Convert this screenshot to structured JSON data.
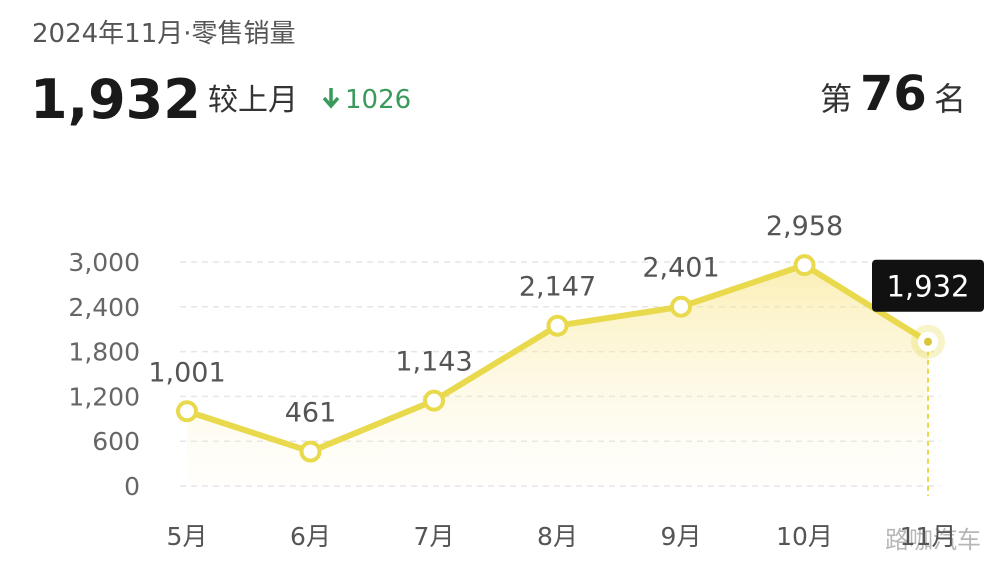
{
  "header": {
    "title": "2024年11月·零售销量",
    "value": "1,932",
    "compare_label": "较上月",
    "change": "1026",
    "rank_prefix": "第",
    "rank": "76",
    "rank_suffix": "名"
  },
  "watermark": "路咖汽车",
  "chart_data": {
    "type": "line",
    "categories": [
      "5月",
      "6月",
      "7月",
      "8月",
      "9月",
      "10月",
      "11月"
    ],
    "values": [
      1001,
      461,
      1143,
      2147,
      2401,
      2958,
      1932
    ],
    "value_labels": [
      "1,001",
      "461",
      "1,143",
      "2,147",
      "2,401",
      "2,958",
      "1,932"
    ],
    "color": "#e9d94c",
    "ylim": [
      0,
      3000
    ],
    "yticks": [
      0,
      600,
      {
        "value": 1200,
        "label": "1,200"
      },
      {
        "value": 1800,
        "label": "1,800"
      },
      {
        "value": 2400,
        "label": "2,400"
      },
      {
        "value": 3000,
        "label": "3,000"
      }
    ],
    "grid": true
  }
}
